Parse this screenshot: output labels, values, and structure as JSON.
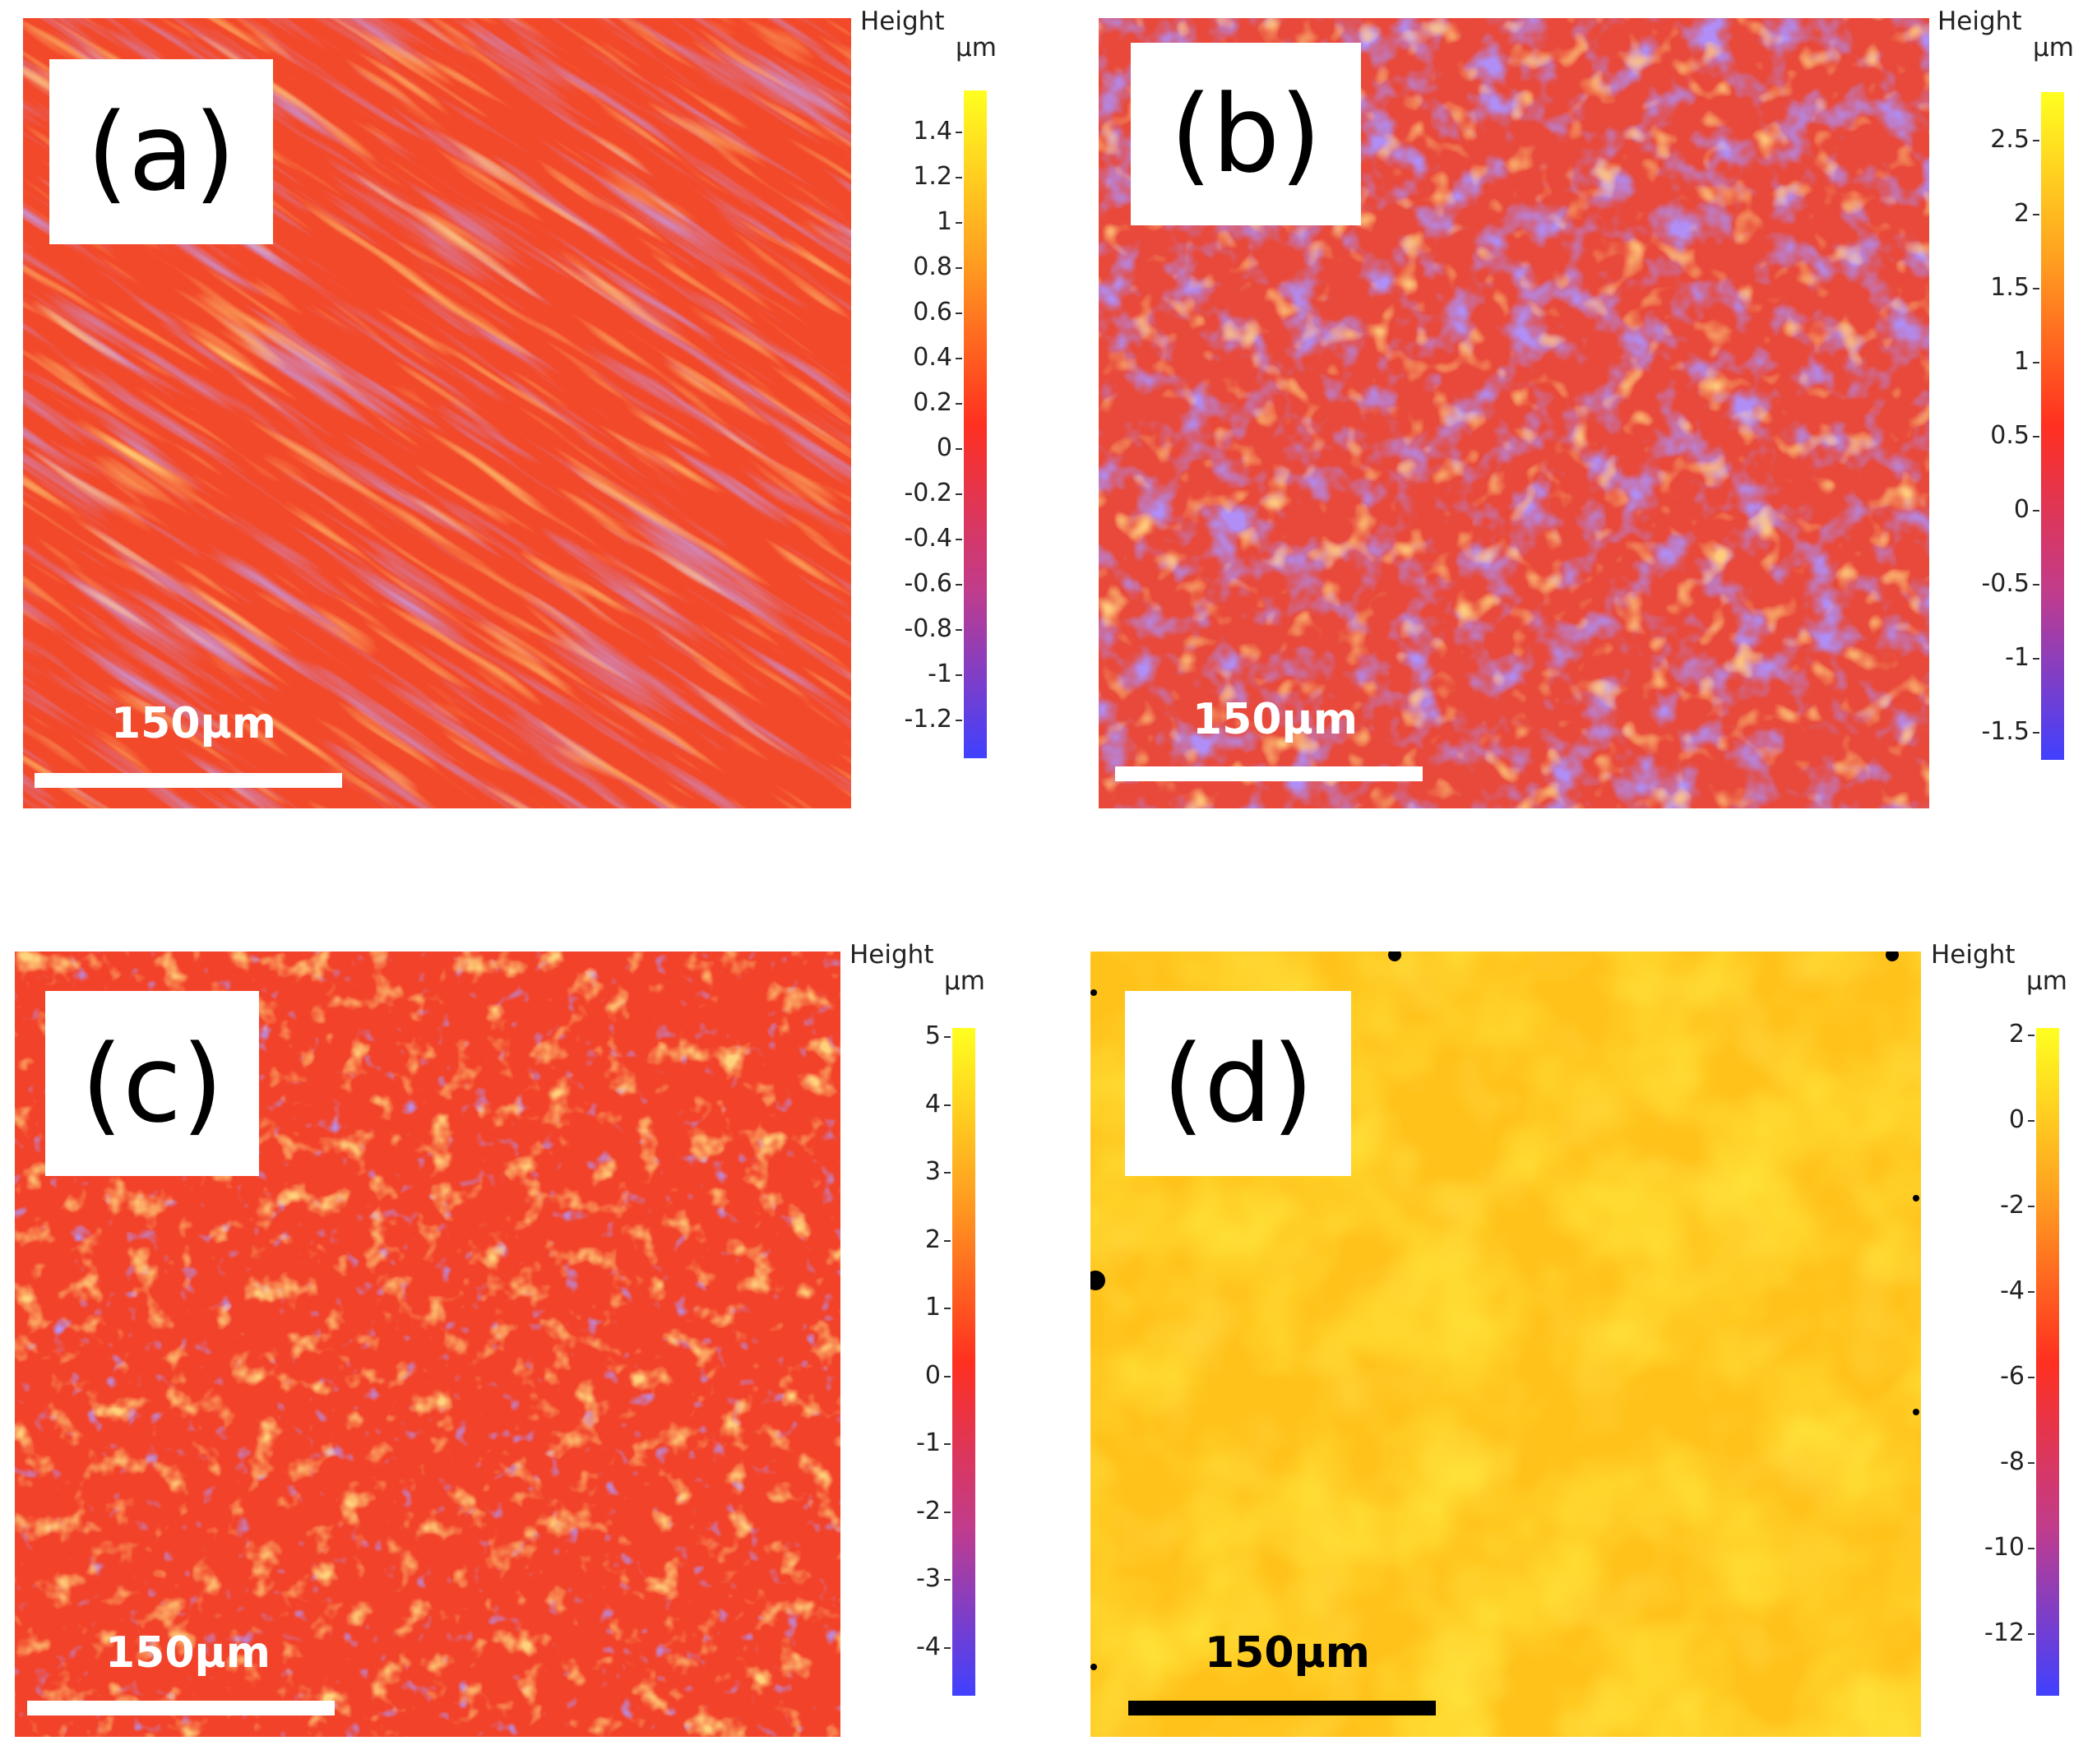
{
  "figure": {
    "panels": [
      {
        "id": "a",
        "label": "(a)",
        "scale_bar_text": "150μm",
        "colorbar_title": "Height",
        "colorbar_unit": "μm",
        "colorbar_ticks": [
          "1.4",
          "1.2",
          "1",
          "0.8",
          "0.6",
          "0.4",
          "0.2",
          "0",
          "-0.2",
          "-0.4",
          "-0.6",
          "-0.8",
          "-1",
          "-1.2"
        ],
        "base_color": "#f2492a",
        "texture": "diagonal-streaks"
      },
      {
        "id": "b",
        "label": "(b)",
        "scale_bar_text": "150μm",
        "colorbar_title": "Height",
        "colorbar_unit": "μm",
        "colorbar_ticks": [
          "2.5",
          "2",
          "1.5",
          "1",
          "0.5",
          "0",
          "-0.5",
          "-1",
          "-1.5"
        ],
        "base_color": "#e8493a",
        "texture": "mottled-blue-red"
      },
      {
        "id": "c",
        "label": "(c)",
        "scale_bar_text": "150μm",
        "colorbar_title": "Height",
        "colorbar_unit": "μm",
        "colorbar_ticks": [
          "5",
          "4",
          "3",
          "2",
          "1",
          "0",
          "-1",
          "-2",
          "-3",
          "-4"
        ],
        "base_color": "#f2432a",
        "texture": "speckled-orange"
      },
      {
        "id": "d",
        "label": "(d)",
        "scale_bar_text": "150μm",
        "colorbar_title": "Height",
        "colorbar_unit": "μm",
        "colorbar_ticks": [
          "2",
          "0",
          "-2",
          "-4",
          "-6",
          "-8",
          "-10",
          "-12"
        ],
        "base_color": "#ffc21a",
        "texture": "uniform-yellow"
      }
    ],
    "colors": {
      "colormap_top": "#ffff20",
      "colormap_mid_upper": "#ffa020",
      "colormap_mid": "#ff3020",
      "colormap_mid_lower": "#c03c8c",
      "colormap_bottom": "#4040ff",
      "scale_bar_light": "#ffffff",
      "scale_bar_dark": "#000000"
    }
  }
}
